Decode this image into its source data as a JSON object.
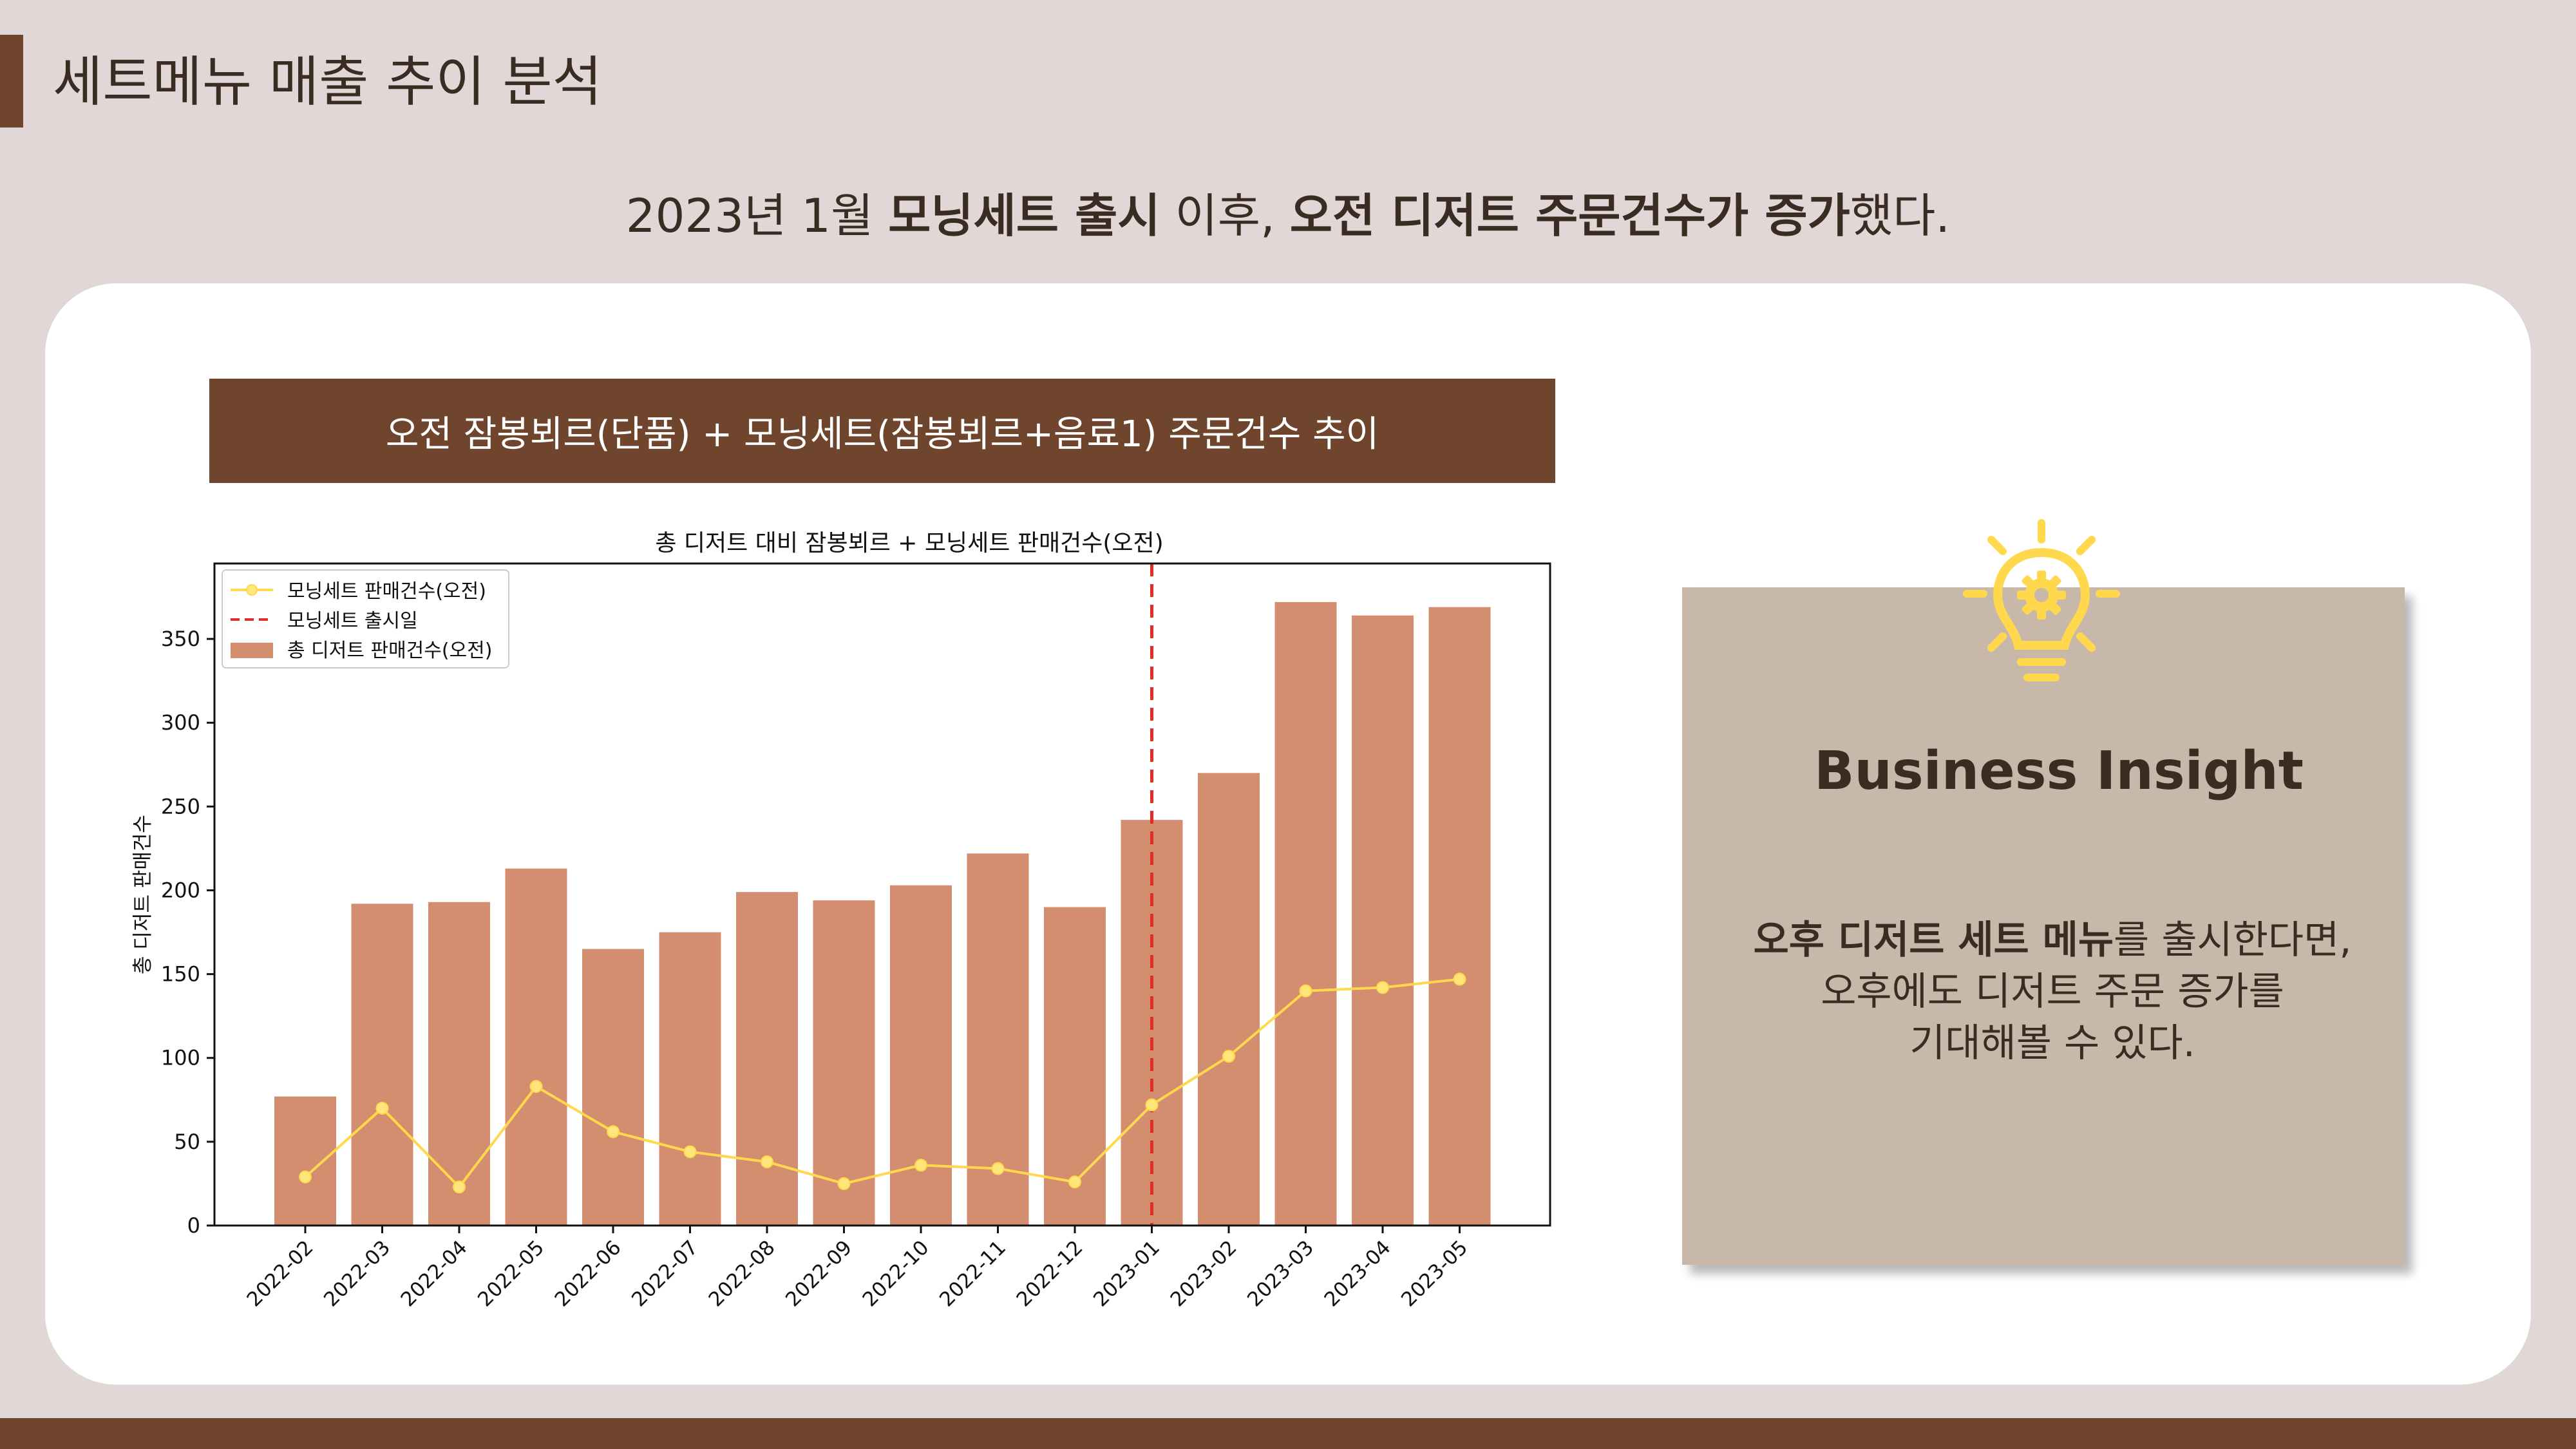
{
  "page": {
    "title": "세트메뉴 매출 추이 분석",
    "headline": {
      "p1": "2023년 1월 ",
      "b1": "모닝세트 출시",
      "p2": " 이후,  ",
      "b2": "오전 디저트 주문건수가 증가",
      "p3": "했다."
    },
    "chart_banner": "오전 잠봉뵈르(단품) + 모닝세트(잠봉뵈르+음료1) 주문건수 추이"
  },
  "insight": {
    "title": "Business Insight",
    "bold": "오후 디저트 세트 메뉴",
    "line1_rest": "를 출시한다면,",
    "line2": "오후에도 디저트 주문 증가를",
    "line3": "기대해볼 수 있다.",
    "icon": "lightbulb-gear-icon"
  },
  "colors": {
    "background": "#e0d7d6",
    "accent_brown": "#6f452d",
    "bar": "#d38d6f",
    "line": "#ffd84d",
    "launch_line": "#e32d27",
    "insight_box": "#c8b8aa",
    "bulb": "#ffd84d"
  },
  "chart_data": {
    "type": "bar",
    "title": "총 디저트 대비 잠봉뵈르 + 모닝세트 판매건수(오전)",
    "ylabel": "총 디저트 판매건수",
    "xlabel": "",
    "categories": [
      "2022-02",
      "2022-03",
      "2022-04",
      "2022-05",
      "2022-06",
      "2022-07",
      "2022-08",
      "2022-09",
      "2022-10",
      "2022-11",
      "2022-12",
      "2023-01",
      "2023-02",
      "2023-03",
      "2023-04",
      "2023-05"
    ],
    "series": [
      {
        "name": "총 디저트 판매건수(오전)",
        "type": "bar",
        "values": [
          77,
          192,
          193,
          213,
          165,
          175,
          199,
          194,
          203,
          222,
          190,
          242,
          270,
          372,
          364,
          369
        ]
      },
      {
        "name": "모닝세트 판매건수(오전)",
        "type": "line",
        "values": [
          29,
          70,
          23,
          83,
          56,
          44,
          38,
          25,
          36,
          34,
          26,
          72,
          101,
          140,
          142,
          147
        ]
      }
    ],
    "launch_marker": {
      "name": "모닝세트 출시일",
      "category": "2023-01"
    },
    "ylim": [
      0,
      395
    ],
    "yticks": [
      0,
      50,
      100,
      150,
      200,
      250,
      300,
      350
    ],
    "legend": "top-left",
    "grid": false
  }
}
